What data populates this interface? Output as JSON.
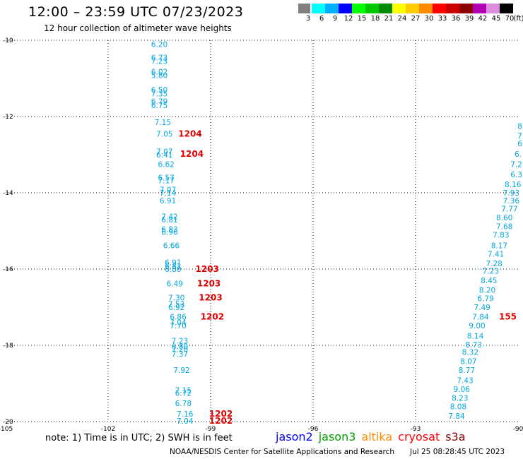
{
  "header": {
    "title": "12:00 – 23:59 UTC 07/23/2023",
    "subtitle": "12 hour collection of altimeter wave heights"
  },
  "legend": {
    "unit": "(ft)",
    "bins": [
      {
        "label": "3",
        "color": "#808080"
      },
      {
        "label": "6",
        "color": "#00ffff"
      },
      {
        "label": "9",
        "color": "#00b0ff"
      },
      {
        "label": "12",
        "color": "#0000ff"
      },
      {
        "label": "15",
        "color": "#00ff00"
      },
      {
        "label": "18",
        "color": "#00c800"
      },
      {
        "label": "21",
        "color": "#008c00"
      },
      {
        "label": "24",
        "color": "#ffff00"
      },
      {
        "label": "27",
        "color": "#ffcc00"
      },
      {
        "label": "30",
        "color": "#ff8c00"
      },
      {
        "label": "33",
        "color": "#ff0000"
      },
      {
        "label": "36",
        "color": "#c80000"
      },
      {
        "label": "39",
        "color": "#8c0000"
      },
      {
        "label": "42",
        "color": "#b400b4"
      },
      {
        "label": "45",
        "color": "#dc8cdc"
      },
      {
        "label": "70",
        "color": "#000000"
      }
    ]
  },
  "map": {
    "lon_ticks": [
      "-105",
      "-102",
      "-99",
      "-96",
      "-93",
      "-90"
    ],
    "lat_ticks": [
      "-10",
      "-12",
      "-14",
      "-16",
      "-18",
      "-20"
    ],
    "wave_color": "#00a8e0",
    "time_color": "#e00000",
    "track_left": [
      {
        "v": "6.20",
        "lon": -100.5,
        "lat": -10.1
      },
      {
        "v": "6.73",
        "lon": -100.5,
        "lat": -10.45
      },
      {
        "v": "7.23",
        "lon": -100.5,
        "lat": -10.55
      },
      {
        "v": "6.02",
        "lon": -100.5,
        "lat": -10.82
      },
      {
        "v": "5.80",
        "lon": -100.5,
        "lat": -10.92
      },
      {
        "v": "6.50",
        "lon": -100.5,
        "lat": -11.3
      },
      {
        "v": "7.35",
        "lon": -100.5,
        "lat": -11.4
      },
      {
        "v": "6.79",
        "lon": -100.5,
        "lat": -11.6
      },
      {
        "v": "6.75",
        "lon": -100.5,
        "lat": -11.7
      },
      {
        "v": "7.15",
        "lon": -100.4,
        "lat": -12.15
      },
      {
        "v": "7.05",
        "lon": -100.35,
        "lat": -12.45
      },
      {
        "v": "7.07",
        "lon": -100.35,
        "lat": -12.92
      },
      {
        "v": "6.41",
        "lon": -100.35,
        "lat": -13.0
      },
      {
        "v": "6.62",
        "lon": -100.3,
        "lat": -13.25
      },
      {
        "v": "6.57",
        "lon": -100.3,
        "lat": -13.6
      },
      {
        "v": "7.17",
        "lon": -100.3,
        "lat": -13.68
      },
      {
        "v": "7.07",
        "lon": -100.25,
        "lat": -13.92
      },
      {
        "v": "7.14",
        "lon": -100.25,
        "lat": -14.0
      },
      {
        "v": "6.91",
        "lon": -100.25,
        "lat": -14.2
      },
      {
        "v": "7.42",
        "lon": -100.2,
        "lat": -14.62
      },
      {
        "v": "6.81",
        "lon": -100.2,
        "lat": -14.7
      },
      {
        "v": "6.83",
        "lon": -100.2,
        "lat": -14.95
      },
      {
        "v": "6.96",
        "lon": -100.2,
        "lat": -15.03
      },
      {
        "v": "6.66",
        "lon": -100.15,
        "lat": -15.38
      },
      {
        "v": "6.91",
        "lon": -100.1,
        "lat": -15.82
      },
      {
        "v": "6.81",
        "lon": -100.1,
        "lat": -15.92
      },
      {
        "v": "6.80",
        "lon": -100.1,
        "lat": -16.0
      },
      {
        "v": "6.49",
        "lon": -100.05,
        "lat": -16.38
      },
      {
        "v": "7.30",
        "lon": -100.0,
        "lat": -16.75
      },
      {
        "v": "7.53",
        "lon": -100.0,
        "lat": -16.92
      },
      {
        "v": "6.92",
        "lon": -100.0,
        "lat": -17.0
      },
      {
        "v": "6.86",
        "lon": -99.95,
        "lat": -17.25
      },
      {
        "v": "7.04",
        "lon": -99.95,
        "lat": -17.4
      },
      {
        "v": "7.70",
        "lon": -99.95,
        "lat": -17.48
      },
      {
        "v": "7.23",
        "lon": -99.9,
        "lat": -17.88
      },
      {
        "v": "6.80",
        "lon": -99.9,
        "lat": -18.03
      },
      {
        "v": "7.20",
        "lon": -99.9,
        "lat": -18.1
      },
      {
        "v": "7.37",
        "lon": -99.9,
        "lat": -18.22
      },
      {
        "v": "7.92",
        "lon": -99.85,
        "lat": -18.65
      },
      {
        "v": "7.15",
        "lon": -99.8,
        "lat": -19.18
      },
      {
        "v": "6.72",
        "lon": -99.8,
        "lat": -19.25
      },
      {
        "v": "6.78",
        "lon": -99.8,
        "lat": -19.52
      },
      {
        "v": "7.16",
        "lon": -99.75,
        "lat": -19.8
      },
      {
        "v": "7.04",
        "lon": -99.75,
        "lat": -19.98
      }
    ],
    "times_left": [
      {
        "t": "1204",
        "lon": -99.6,
        "lat": -12.45
      },
      {
        "t": "1204",
        "lon": -99.55,
        "lat": -12.98
      },
      {
        "t": "1203",
        "lon": -99.1,
        "lat": -16.0
      },
      {
        "t": "1203",
        "lon": -99.05,
        "lat": -16.38
      },
      {
        "t": "1203",
        "lon": -99.0,
        "lat": -16.75
      },
      {
        "t": "1202",
        "lon": -98.95,
        "lat": -17.25
      },
      {
        "t": "1202",
        "lon": -98.7,
        "lat": -19.8
      },
      {
        "t": "1202",
        "lon": -98.7,
        "lat": -19.98
      }
    ],
    "track_right": [
      {
        "v": "8",
        "lon": -89.95,
        "lat": -12.25
      },
      {
        "v": "7",
        "lon": -89.95,
        "lat": -12.5
      },
      {
        "v": "6",
        "lon": -89.95,
        "lat": -12.7
      },
      {
        "v": "6.",
        "lon": -90.0,
        "lat": -12.98
      },
      {
        "v": "7.2",
        "lon": -90.05,
        "lat": -13.25
      },
      {
        "v": "6.3",
        "lon": -90.05,
        "lat": -13.52
      },
      {
        "v": "8.16",
        "lon": -90.15,
        "lat": -13.78
      },
      {
        "v": "7.93",
        "lon": -90.2,
        "lat": -14.0
      },
      {
        "v": "7.36",
        "lon": -90.2,
        "lat": -14.2
      },
      {
        "v": "7.77",
        "lon": -90.25,
        "lat": -14.42
      },
      {
        "v": "8.60",
        "lon": -90.4,
        "lat": -14.65
      },
      {
        "v": "7.68",
        "lon": -90.4,
        "lat": -14.88
      },
      {
        "v": "7.83",
        "lon": -90.5,
        "lat": -15.1
      },
      {
        "v": "8.17",
        "lon": -90.55,
        "lat": -15.38
      },
      {
        "v": "7.41",
        "lon": -90.65,
        "lat": -15.6
      },
      {
        "v": "7.28",
        "lon": -90.7,
        "lat": -15.85
      },
      {
        "v": "7.23",
        "lon": -90.8,
        "lat": -16.05
      },
      {
        "v": "8.45",
        "lon": -90.85,
        "lat": -16.3
      },
      {
        "v": "8.20",
        "lon": -90.9,
        "lat": -16.55
      },
      {
        "v": "6.79",
        "lon": -90.95,
        "lat": -16.77
      },
      {
        "v": "7.49",
        "lon": -91.05,
        "lat": -17.0
      },
      {
        "v": "7.84",
        "lon": -91.1,
        "lat": -17.25
      },
      {
        "v": "9.00",
        "lon": -91.2,
        "lat": -17.48
      },
      {
        "v": "8.14",
        "lon": -91.25,
        "lat": -17.75
      },
      {
        "v": "8.73",
        "lon": -91.3,
        "lat": -17.98
      },
      {
        "v": "8.32",
        "lon": -91.4,
        "lat": -18.18
      },
      {
        "v": "8.07",
        "lon": -91.45,
        "lat": -18.42
      },
      {
        "v": "8.77",
        "lon": -91.5,
        "lat": -18.65
      },
      {
        "v": "7.43",
        "lon": -91.55,
        "lat": -18.92
      },
      {
        "v": "9.06",
        "lon": -91.65,
        "lat": -19.15
      },
      {
        "v": "8.23",
        "lon": -91.7,
        "lat": -19.38
      },
      {
        "v": "8.08",
        "lon": -91.75,
        "lat": -19.6
      },
      {
        "v": "7.84",
        "lon": -91.8,
        "lat": -19.85
      }
    ],
    "times_right": [
      {
        "t": "155",
        "lon": -90.3,
        "lat": -17.25
      }
    ]
  },
  "footer": {
    "note": "note:  1) Time is in UTC; 2) SWH is in feet",
    "satellites": [
      {
        "name": "jason2",
        "color": "#0000ff"
      },
      {
        "name": "jason3",
        "color": "#00a000"
      },
      {
        "name": "altika",
        "color": "#ff8c00"
      },
      {
        "name": "cryosat",
        "color": "#ff0000"
      },
      {
        "name": "s3a",
        "color": "#8c0000"
      }
    ],
    "credit": "NOAA/NESDIS Center for Satellite Applications and Research",
    "timestamp": "Jul 25 08:28:45 UTC 2023"
  }
}
